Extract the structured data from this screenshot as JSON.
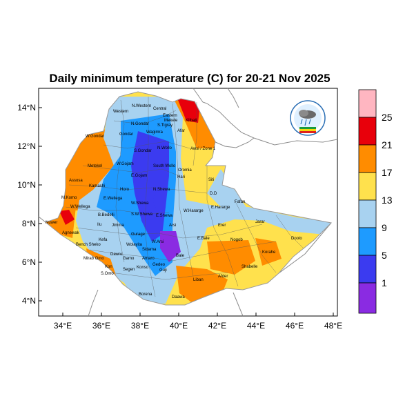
{
  "title": "Daily minimum temperature (C) for 20-21 Nov 2025",
  "axes": {
    "x_ticks": [
      "34°E",
      "36°E",
      "38°E",
      "40°E",
      "42°E",
      "44°E",
      "46°E",
      "48°E"
    ],
    "y_ticks": [
      "14°N",
      "12°N",
      "10°N",
      "8°N",
      "6°N",
      "4°N"
    ]
  },
  "colorbar": {
    "labels": [
      "25",
      "21",
      "17",
      "13",
      "9",
      "5",
      "1"
    ],
    "colors": [
      "#ffb6c1",
      "#e8000b",
      "#ff8c00",
      "#ffe14d",
      "#a8d2f0",
      "#1e9bff",
      "#3b3bf0",
      "#8a2be2"
    ]
  },
  "regions": [
    "N.Western",
    "Central",
    "Eastern",
    "Western",
    "Mekele",
    "N.Gondar",
    "S.Tigray",
    "W.Gondar",
    "Wagimra",
    "Gondar",
    "Kilbati",
    "Afar",
    "S.Gondar",
    "N.Wollo",
    "Awsi / Zone 1",
    "Metekel",
    "W.Gojam",
    "South Wollo",
    "Oromia",
    "Hari",
    "Assosa",
    "Kamashi",
    "E.Gojam",
    "Siti",
    "Horo",
    "N.Shewa",
    "D.D",
    "M.Komo",
    "W.Wellega",
    "E.Wellega",
    "W.Shewa",
    "W.Hararge",
    "E.Hararge",
    "Fafan",
    "Nuwer",
    "Jimma",
    "S.W.Shewa",
    "B.Bedelli",
    "Ilu",
    "E.Shewa",
    "Jarar",
    "Erer",
    "Agnewak",
    "Kefa",
    "Gurage",
    "Arsi",
    "E.Bale",
    "Bench Sheko",
    "Wolayita",
    "W.Arsi",
    "Nogob",
    "Doolo",
    "Mirab Omo",
    "Sidama",
    "Bale",
    "Korahe",
    "Gamo",
    "Dawro",
    "Shabelle",
    "S.Omo",
    "Konso",
    "Amaro",
    "Guji",
    "Liban",
    "Afder",
    "Borena",
    "Daawa",
    "Gedeo",
    "Segen",
    "Kon"
  ]
}
